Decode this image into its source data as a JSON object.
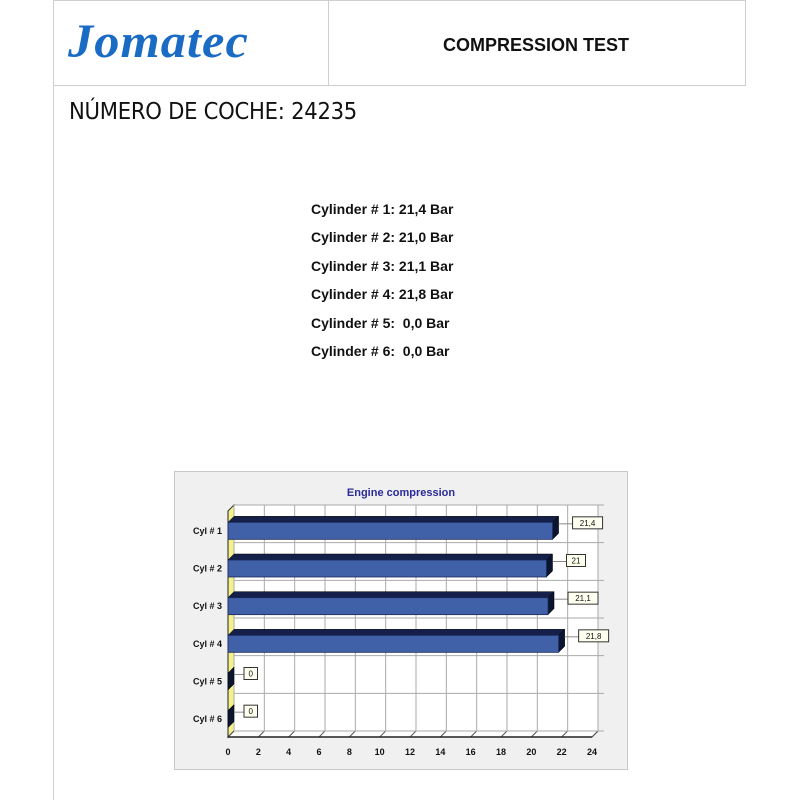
{
  "header": {
    "logo_text": "Jomatec",
    "title": "COMPRESSION TEST"
  },
  "car_number_label": "NÚMERO DE COCHE: 24235",
  "readings": [
    "Cylinder # 1: 21,4 Bar",
    "Cylinder # 2: 21,0 Bar",
    "Cylinder # 3: 21,1 Bar",
    "Cylinder # 4: 21,8 Bar",
    "Cylinder # 5:  0,0 Bar",
    "Cylinder # 6:  0,0 Bar"
  ],
  "colors": {
    "logo": "#1a6bc4",
    "bar_front": "#4060a8",
    "bar_top": "#14204a",
    "title": "#2a2a9a",
    "label_bg": "#fffff0"
  },
  "chart_data": {
    "type": "bar",
    "orientation": "horizontal",
    "title": "Engine compression",
    "categories": [
      "Cyl # 1",
      "Cyl # 2",
      "Cyl # 3",
      "Cyl # 4",
      "Cyl # 5",
      "Cyl # 6"
    ],
    "values": [
      21.4,
      21,
      21.1,
      21.8,
      0,
      0
    ],
    "data_labels": [
      "21,4",
      "21",
      "21,1",
      "21,8",
      "0",
      "0"
    ],
    "xlim": [
      0,
      24
    ],
    "xticks": [
      "0",
      "2",
      "4",
      "6",
      "8",
      "10",
      "12",
      "14",
      "16",
      "18",
      "20",
      "22",
      "24"
    ],
    "grid": true,
    "style": "3d"
  }
}
